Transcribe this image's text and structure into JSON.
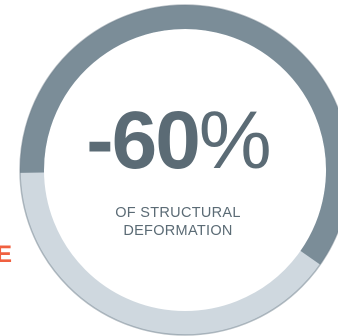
{
  "stat": {
    "value_number": "-60",
    "value_suffix": "%",
    "caption_line1": "OF STRUCTURAL",
    "caption_line2": "DEFORMATION"
  },
  "gauge": {
    "fraction": 0.6,
    "colors": {
      "filled": "#7b8d98",
      "remaining": "#cfd8df",
      "text": "#5b6b75",
      "accent": "#f06040"
    }
  },
  "edge_fragment": {
    "text": "E"
  }
}
